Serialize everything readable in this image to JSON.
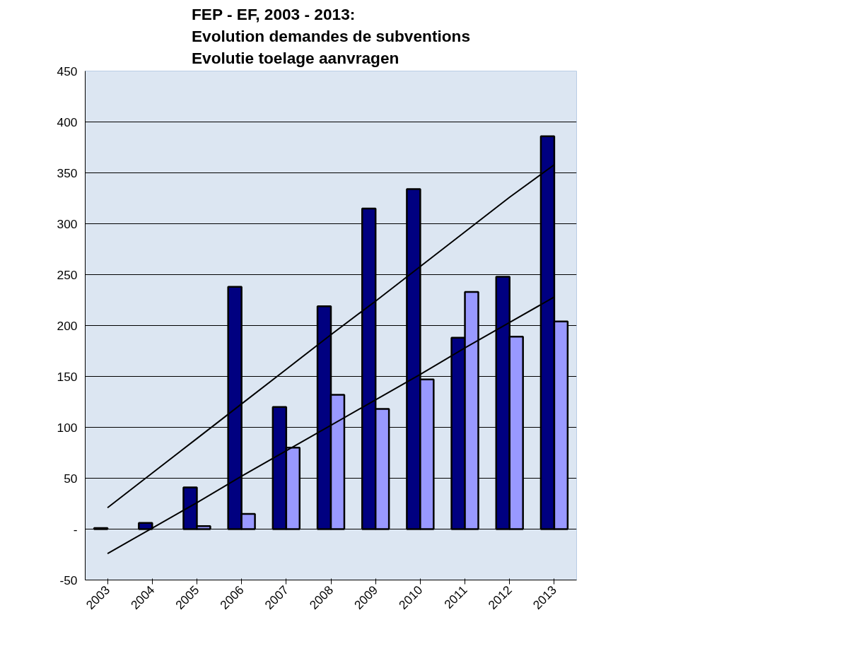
{
  "chart_data": {
    "type": "bar",
    "title": "FEP - EF, 2003 - 2013:\nEvolution demandes de subventions\nEvolutie toelage aanvragen",
    "categories": [
      "2003",
      "2004",
      "2005",
      "2006",
      "2007",
      "2008",
      "2009",
      "2010",
      "2011",
      "2012",
      "2013"
    ],
    "series": [
      {
        "color": "#000080",
        "values": [
          1,
          6,
          41,
          238,
          120,
          219,
          315,
          334,
          188,
          248,
          386
        ]
      },
      {
        "color": "#9999ff",
        "values": [
          0,
          0,
          3,
          15,
          80,
          132,
          118,
          147,
          233,
          189,
          204
        ]
      },
      {
        "type": "line",
        "color": "#000000",
        "values": [
          21,
          55,
          89,
          123,
          157,
          191,
          224,
          258,
          292,
          326,
          358
        ]
      },
      {
        "type": "line",
        "color": "#000000",
        "values": [
          -24,
          1,
          26,
          52,
          77,
          102,
          127,
          152,
          178,
          203,
          228
        ]
      }
    ],
    "ylim": [
      -50,
      450
    ],
    "yticks": [
      -50,
      {
        "value": 0,
        "label": "-"
      },
      50,
      100,
      150,
      200,
      250,
      300,
      350,
      400,
      450
    ],
    "grid": "y"
  }
}
